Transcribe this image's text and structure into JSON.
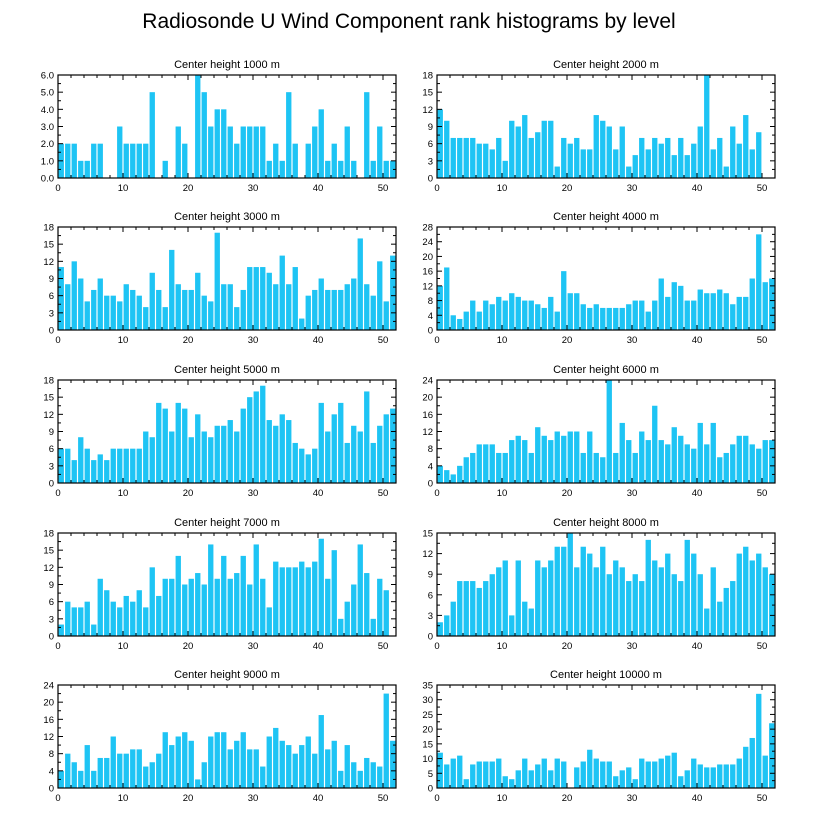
{
  "figure_title": "Radiosonde U Wind Component rank histograms by level",
  "colors": {
    "bar": "#1ec4f4",
    "frame": "#000000",
    "background": "#ffffff"
  },
  "chart_data": [
    {
      "type": "bar",
      "title": "Center height 1000 m",
      "x": [
        0,
        1,
        2,
        3,
        4,
        5,
        6,
        7,
        8,
        9,
        10,
        11,
        12,
        13,
        14,
        15,
        16,
        17,
        18,
        19,
        20,
        21,
        22,
        23,
        24,
        25,
        26,
        27,
        28,
        29,
        30,
        31,
        32,
        33,
        34,
        35,
        36,
        37,
        38,
        39,
        40,
        41,
        42,
        43,
        44,
        45,
        46,
        47,
        48,
        49,
        50,
        51
      ],
      "values": [
        2,
        2,
        2,
        1,
        1,
        2,
        2,
        0,
        0,
        3,
        2,
        2,
        2,
        2,
        5,
        0,
        1,
        0,
        3,
        2,
        0,
        6,
        5,
        3,
        4,
        4,
        3,
        2,
        3,
        3,
        3,
        3,
        1,
        2,
        1,
        5,
        2,
        0,
        2,
        3,
        4,
        1,
        2,
        1,
        3,
        1,
        0,
        5,
        1,
        3,
        1,
        1
      ],
      "xlim": [
        0,
        52
      ],
      "ylim": [
        0,
        6
      ],
      "xticks": [
        "0",
        "10",
        "20",
        "30",
        "40",
        "50"
      ],
      "yticks": [
        "0.0",
        "1.0",
        "2.0",
        "3.0",
        "4.0",
        "5.0",
        "6.0"
      ]
    },
    {
      "type": "bar",
      "title": "Center height 2000 m",
      "x": [
        0,
        1,
        2,
        3,
        4,
        5,
        6,
        7,
        8,
        9,
        10,
        11,
        12,
        13,
        14,
        15,
        16,
        17,
        18,
        19,
        20,
        21,
        22,
        23,
        24,
        25,
        26,
        27,
        28,
        29,
        30,
        31,
        32,
        33,
        34,
        35,
        36,
        37,
        38,
        39,
        40,
        41,
        42,
        43,
        44,
        45,
        46,
        47,
        48,
        49,
        50,
        51
      ],
      "values": [
        12,
        10,
        7,
        7,
        7,
        7,
        6,
        6,
        5,
        7,
        3,
        10,
        9,
        11,
        7,
        8,
        10,
        10,
        2,
        7,
        6,
        7,
        5,
        5,
        11,
        10,
        9,
        5,
        9,
        2,
        4,
        7,
        5,
        7,
        6,
        7,
        4,
        7,
        4,
        6,
        9,
        18,
        5,
        7,
        2,
        9,
        6,
        11,
        5,
        8,
        0,
        0
      ],
      "xlim": [
        0,
        52
      ],
      "ylim": [
        0,
        18
      ],
      "xticks": [
        "0",
        "10",
        "20",
        "30",
        "40",
        "50"
      ],
      "yticks": [
        "0",
        "3",
        "6",
        "9",
        "12",
        "15",
        "18"
      ]
    },
    {
      "type": "bar",
      "title": "Center height 3000 m",
      "x": [
        0,
        1,
        2,
        3,
        4,
        5,
        6,
        7,
        8,
        9,
        10,
        11,
        12,
        13,
        14,
        15,
        16,
        17,
        18,
        19,
        20,
        21,
        22,
        23,
        24,
        25,
        26,
        27,
        28,
        29,
        30,
        31,
        32,
        33,
        34,
        35,
        36,
        37,
        38,
        39,
        40,
        41,
        42,
        43,
        44,
        45,
        46,
        47,
        48,
        49,
        50,
        51
      ],
      "values": [
        11,
        8,
        12,
        9,
        5,
        7,
        9,
        6,
        6,
        5,
        8,
        7,
        6,
        4,
        10,
        7,
        4,
        14,
        8,
        7,
        7,
        10,
        6,
        5,
        17,
        8,
        8,
        4,
        7,
        11,
        11,
        11,
        10,
        8,
        13,
        8,
        11,
        2,
        6,
        7,
        9,
        7,
        7,
        7,
        8,
        9,
        16,
        8,
        6,
        12,
        5,
        13
      ],
      "xlim": [
        0,
        52
      ],
      "ylim": [
        0,
        18
      ],
      "xticks": [
        "0",
        "10",
        "20",
        "30",
        "40",
        "50"
      ],
      "yticks": [
        "0",
        "3",
        "6",
        "9",
        "12",
        "15",
        "18"
      ]
    },
    {
      "type": "bar",
      "title": "Center height 4000 m",
      "x": [
        0,
        1,
        2,
        3,
        4,
        5,
        6,
        7,
        8,
        9,
        10,
        11,
        12,
        13,
        14,
        15,
        16,
        17,
        18,
        19,
        20,
        21,
        22,
        23,
        24,
        25,
        26,
        27,
        28,
        29,
        30,
        31,
        32,
        33,
        34,
        35,
        36,
        37,
        38,
        39,
        40,
        41,
        42,
        43,
        44,
        45,
        46,
        47,
        48,
        49,
        50,
        51
      ],
      "values": [
        12,
        17,
        4,
        3,
        5,
        8,
        5,
        8,
        7,
        9,
        8,
        10,
        9,
        8,
        8,
        7,
        6,
        9,
        5,
        16,
        10,
        10,
        7,
        6,
        7,
        6,
        6,
        6,
        6,
        7,
        8,
        8,
        5,
        8,
        14,
        9,
        13,
        12,
        8,
        8,
        11,
        10,
        10,
        11,
        10,
        7,
        9,
        9,
        14,
        26,
        13,
        14
      ],
      "xlim": [
        0,
        52
      ],
      "ylim": [
        0,
        28
      ],
      "xticks": [
        "0",
        "10",
        "20",
        "30",
        "40",
        "50"
      ],
      "yticks": [
        "0",
        "4",
        "8",
        "12",
        "16",
        "20",
        "24",
        "28"
      ]
    },
    {
      "type": "bar",
      "title": "Center height 5000 m",
      "x": [
        0,
        1,
        2,
        3,
        4,
        5,
        6,
        7,
        8,
        9,
        10,
        11,
        12,
        13,
        14,
        15,
        16,
        17,
        18,
        19,
        20,
        21,
        22,
        23,
        24,
        25,
        26,
        27,
        28,
        29,
        30,
        31,
        32,
        33,
        34,
        35,
        36,
        37,
        38,
        39,
        40,
        41,
        42,
        43,
        44,
        45,
        46,
        47,
        48,
        49,
        50,
        51
      ],
      "values": [
        6,
        6,
        4,
        8,
        6,
        4,
        5,
        4,
        6,
        6,
        6,
        6,
        6,
        9,
        8,
        14,
        13,
        9,
        14,
        13,
        8,
        12,
        9,
        8,
        10,
        10,
        11,
        9,
        13,
        15,
        16,
        17,
        11,
        10,
        12,
        11,
        7,
        6,
        5,
        6,
        14,
        9,
        12,
        14,
        7,
        10,
        9,
        16,
        7,
        10,
        12,
        13
      ],
      "xlim": [
        0,
        52
      ],
      "ylim": [
        0,
        18
      ],
      "xticks": [
        "0",
        "10",
        "20",
        "30",
        "40",
        "50"
      ],
      "yticks": [
        "0",
        "3",
        "6",
        "9",
        "12",
        "15",
        "18"
      ]
    },
    {
      "type": "bar",
      "title": "Center height 6000 m",
      "x": [
        0,
        1,
        2,
        3,
        4,
        5,
        6,
        7,
        8,
        9,
        10,
        11,
        12,
        13,
        14,
        15,
        16,
        17,
        18,
        19,
        20,
        21,
        22,
        23,
        24,
        25,
        26,
        27,
        28,
        29,
        30,
        31,
        32,
        33,
        34,
        35,
        36,
        37,
        38,
        39,
        40,
        41,
        42,
        43,
        44,
        45,
        46,
        47,
        48,
        49,
        50,
        51
      ],
      "values": [
        4,
        3,
        2,
        4,
        6,
        7,
        9,
        9,
        9,
        7,
        7,
        10,
        11,
        10,
        7,
        13,
        11,
        10,
        12,
        11,
        12,
        12,
        7,
        12,
        7,
        6,
        24,
        7,
        14,
        10,
        7,
        12,
        10,
        18,
        10,
        9,
        13,
        11,
        9,
        8,
        14,
        9,
        14,
        6,
        7,
        9,
        11,
        11,
        9,
        8,
        10,
        10
      ],
      "xlim": [
        0,
        52
      ],
      "ylim": [
        0,
        24
      ],
      "xticks": [
        "0",
        "10",
        "20",
        "30",
        "40",
        "50"
      ],
      "yticks": [
        "0",
        "4",
        "8",
        "12",
        "16",
        "20",
        "24"
      ]
    },
    {
      "type": "bar",
      "title": "Center height 7000 m",
      "x": [
        0,
        1,
        2,
        3,
        4,
        5,
        6,
        7,
        8,
        9,
        10,
        11,
        12,
        13,
        14,
        15,
        16,
        17,
        18,
        19,
        20,
        21,
        22,
        23,
        24,
        25,
        26,
        27,
        28,
        29,
        30,
        31,
        32,
        33,
        34,
        35,
        36,
        37,
        38,
        39,
        40,
        41,
        42,
        43,
        44,
        45,
        46,
        47,
        48,
        49,
        50,
        51
      ],
      "values": [
        2,
        6,
        5,
        5,
        6,
        2,
        10,
        8,
        6,
        5,
        7,
        6,
        8,
        5,
        12,
        7,
        10,
        10,
        14,
        9,
        10,
        11,
        9,
        16,
        10,
        14,
        10,
        11,
        14,
        9,
        16,
        10,
        5,
        13,
        12,
        12,
        12,
        13,
        12,
        13,
        17,
        10,
        15,
        3,
        6,
        9,
        16,
        11,
        3,
        10,
        8,
        0
      ],
      "xlim": [
        0,
        52
      ],
      "ylim": [
        0,
        18
      ],
      "xticks": [
        "0",
        "10",
        "20",
        "30",
        "40",
        "50"
      ],
      "yticks": [
        "0",
        "3",
        "6",
        "9",
        "12",
        "15",
        "18"
      ]
    },
    {
      "type": "bar",
      "title": "Center height 8000 m",
      "x": [
        0,
        1,
        2,
        3,
        4,
        5,
        6,
        7,
        8,
        9,
        10,
        11,
        12,
        13,
        14,
        15,
        16,
        17,
        18,
        19,
        20,
        21,
        22,
        23,
        24,
        25,
        26,
        27,
        28,
        29,
        30,
        31,
        32,
        33,
        34,
        35,
        36,
        37,
        38,
        39,
        40,
        41,
        42,
        43,
        44,
        45,
        46,
        47,
        48,
        49,
        50,
        51
      ],
      "values": [
        2,
        3,
        5,
        8,
        8,
        8,
        7,
        8,
        9,
        10,
        11,
        3,
        11,
        5,
        4,
        11,
        10,
        11,
        13,
        13,
        15,
        10,
        13,
        12,
        10,
        13,
        9,
        11,
        10,
        8,
        9,
        8,
        14,
        11,
        10,
        12,
        9,
        8,
        14,
        12,
        9,
        4,
        10,
        5,
        7,
        8,
        12,
        13,
        11,
        12,
        10,
        9
      ],
      "xlim": [
        0,
        52
      ],
      "ylim": [
        0,
        15
      ],
      "xticks": [
        "0",
        "10",
        "20",
        "30",
        "40",
        "50"
      ],
      "yticks": [
        "0",
        "3",
        "6",
        "9",
        "12",
        "15"
      ]
    },
    {
      "type": "bar",
      "title": "Center height 9000 m",
      "x": [
        0,
        1,
        2,
        3,
        4,
        5,
        6,
        7,
        8,
        9,
        10,
        11,
        12,
        13,
        14,
        15,
        16,
        17,
        18,
        19,
        20,
        21,
        22,
        23,
        24,
        25,
        26,
        27,
        28,
        29,
        30,
        31,
        32,
        33,
        34,
        35,
        36,
        37,
        38,
        39,
        40,
        41,
        42,
        43,
        44,
        45,
        46,
        47,
        48,
        49,
        50,
        51
      ],
      "values": [
        4,
        8,
        6,
        4,
        10,
        4,
        7,
        7,
        12,
        8,
        8,
        9,
        9,
        5,
        6,
        8,
        13,
        10,
        12,
        13,
        11,
        2,
        6,
        12,
        13,
        13,
        9,
        11,
        13,
        9,
        9,
        5,
        12,
        14,
        11,
        10,
        8,
        10,
        12,
        8,
        17,
        9,
        11,
        4,
        10,
        6,
        4,
        7,
        6,
        5,
        22,
        11
      ],
      "xlim": [
        0,
        52
      ],
      "ylim": [
        0,
        24
      ],
      "xticks": [
        "0",
        "10",
        "20",
        "30",
        "40",
        "50"
      ],
      "yticks": [
        "0",
        "4",
        "8",
        "12",
        "16",
        "20",
        "24"
      ]
    },
    {
      "type": "bar",
      "title": "Center height 10000 m",
      "x": [
        0,
        1,
        2,
        3,
        4,
        5,
        6,
        7,
        8,
        9,
        10,
        11,
        12,
        13,
        14,
        15,
        16,
        17,
        18,
        19,
        20,
        21,
        22,
        23,
        24,
        25,
        26,
        27,
        28,
        29,
        30,
        31,
        32,
        33,
        34,
        35,
        36,
        37,
        38,
        39,
        40,
        41,
        42,
        43,
        44,
        45,
        46,
        47,
        48,
        49,
        50,
        51
      ],
      "values": [
        12,
        8,
        10,
        11,
        3,
        8,
        9,
        9,
        9,
        10,
        4,
        3,
        6,
        10,
        6,
        8,
        10,
        6,
        10,
        9,
        0,
        7,
        9,
        13,
        10,
        9,
        9,
        4,
        6,
        7,
        3,
        10,
        9,
        9,
        10,
        11,
        12,
        4,
        6,
        10,
        8,
        7,
        7,
        8,
        8,
        8,
        10,
        14,
        17,
        32,
        11,
        22
      ],
      "xlim": [
        0,
        52
      ],
      "ylim": [
        0,
        35
      ],
      "xticks": [
        "0",
        "10",
        "20",
        "30",
        "40",
        "50"
      ],
      "yticks": [
        "0",
        "5",
        "10",
        "15",
        "20",
        "25",
        "30",
        "35"
      ]
    }
  ]
}
